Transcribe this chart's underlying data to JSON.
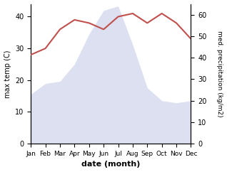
{
  "months": [
    "Jan",
    "Feb",
    "Mar",
    "Apr",
    "May",
    "Jun",
    "Jul",
    "Aug",
    "Sep",
    "Oct",
    "Nov",
    "Dec"
  ],
  "temperature": [
    28,
    30,
    36,
    39,
    38,
    36,
    40,
    41,
    38,
    41,
    38,
    33
  ],
  "precipitation": [
    23,
    28,
    29,
    37,
    51,
    62,
    64,
    46,
    26,
    20,
    19,
    20
  ],
  "temp_color": "#c0504d",
  "precip_fill_color": "#c5cce8",
  "temp_ylim": [
    0,
    44
  ],
  "precip_ylim": [
    0,
    65
  ],
  "temp_yticks": [
    0,
    10,
    20,
    30,
    40
  ],
  "precip_yticks": [
    0,
    10,
    20,
    30,
    40,
    50,
    60
  ],
  "ylabel_left": "max temp (C)",
  "ylabel_right": "med. precipitation (kg/m2)",
  "xlabel": "date (month)",
  "figsize": [
    3.18,
    2.42
  ],
  "dpi": 100
}
